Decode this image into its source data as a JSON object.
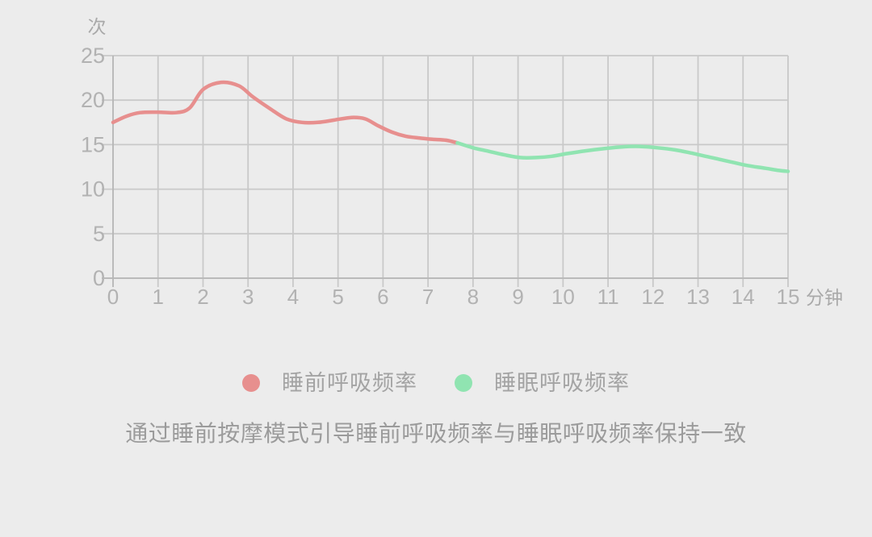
{
  "page": {
    "background": "#ececec"
  },
  "chart_data": {
    "type": "line",
    "title": "",
    "y_unit_label": "次",
    "x_unit_label": "分钟",
    "x_ticks": [
      0,
      1,
      2,
      3,
      4,
      5,
      6,
      7,
      8,
      9,
      10,
      11,
      12,
      13,
      14,
      15
    ],
    "y_ticks": [
      0,
      5,
      10,
      15,
      20,
      25
    ],
    "xlim": [
      0,
      15
    ],
    "ylim": [
      0,
      25
    ],
    "grid": "on",
    "legend_position": "bottom",
    "series": [
      {
        "key": "presleep",
        "name": "睡前呼吸频率",
        "color": "#e78f8e",
        "points": [
          [
            0,
            17.5
          ],
          [
            0.3,
            18.2
          ],
          [
            0.6,
            18.6
          ],
          [
            1.0,
            18.65
          ],
          [
            1.4,
            18.6
          ],
          [
            1.7,
            19.1
          ],
          [
            2.0,
            21.2
          ],
          [
            2.4,
            22.0
          ],
          [
            2.8,
            21.6
          ],
          [
            3.1,
            20.4
          ],
          [
            3.5,
            19.0
          ],
          [
            3.85,
            17.9
          ],
          [
            4.2,
            17.5
          ],
          [
            4.55,
            17.5
          ],
          [
            4.9,
            17.75
          ],
          [
            5.3,
            18.05
          ],
          [
            5.6,
            17.9
          ],
          [
            5.9,
            17.1
          ],
          [
            6.2,
            16.4
          ],
          [
            6.5,
            15.95
          ],
          [
            6.8,
            15.75
          ],
          [
            7.1,
            15.6
          ],
          [
            7.4,
            15.5
          ],
          [
            7.65,
            15.2
          ]
        ]
      },
      {
        "key": "sleep",
        "name": "睡眠呼吸频率",
        "color": "#90e4b1",
        "points": [
          [
            7.65,
            15.2
          ],
          [
            8.0,
            14.65
          ],
          [
            8.35,
            14.25
          ],
          [
            8.7,
            13.85
          ],
          [
            9.05,
            13.55
          ],
          [
            9.4,
            13.55
          ],
          [
            9.75,
            13.7
          ],
          [
            10.1,
            14.0
          ],
          [
            10.5,
            14.3
          ],
          [
            10.9,
            14.55
          ],
          [
            11.3,
            14.75
          ],
          [
            11.7,
            14.8
          ],
          [
            12.1,
            14.65
          ],
          [
            12.5,
            14.4
          ],
          [
            12.9,
            14.0
          ],
          [
            13.3,
            13.55
          ],
          [
            13.7,
            13.1
          ],
          [
            14.1,
            12.65
          ],
          [
            14.5,
            12.35
          ],
          [
            14.8,
            12.1
          ],
          [
            15,
            12.0
          ]
        ]
      }
    ]
  },
  "caption": "通过睡前按摩模式引导睡前呼吸频率与睡眠呼吸频率保持一致",
  "colors": {
    "background": "#ececec",
    "grid": "#c9c9c9",
    "axis": "#b7b7b7",
    "tick_label": "#b2b2b2",
    "unit_label": "#a9a9a9",
    "legend_text": "#a3a3a3",
    "caption_text": "#9b9b9b"
  }
}
